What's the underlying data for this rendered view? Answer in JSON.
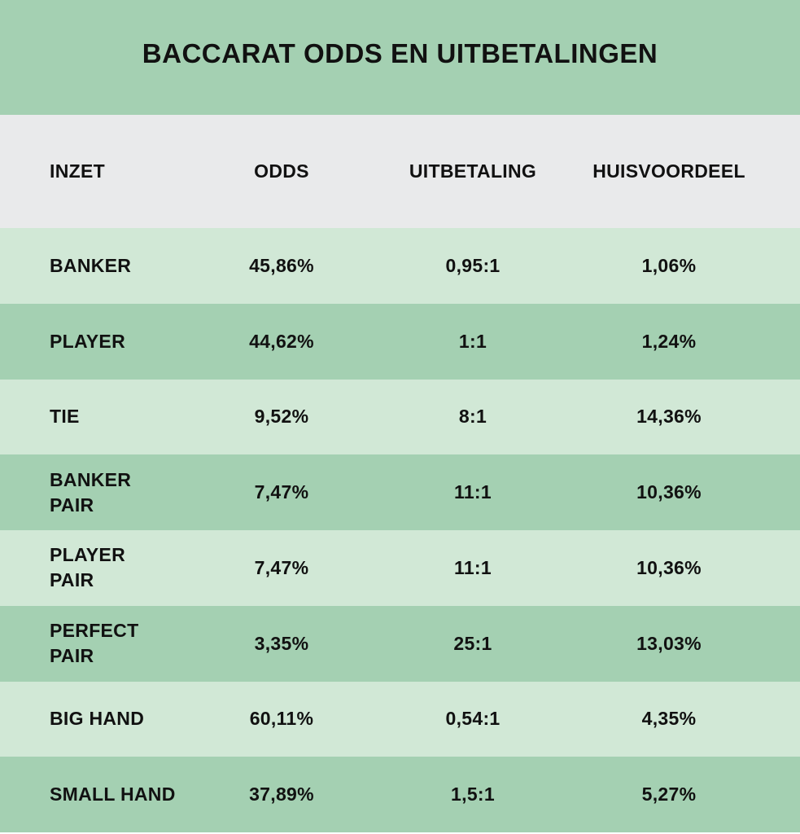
{
  "title": "BACCARAT ODDS EN UITBETALINGEN",
  "colors": {
    "title_band": "#a4d0b2",
    "header_band": "#e9eaeb",
    "row_light": "#d1e8d6",
    "row_dark": "#a4d0b2",
    "text": "#111111"
  },
  "headers": {
    "inzet": "INZET",
    "odds": "ODDS",
    "uitbetaling": "UITBETALING",
    "huisvoordeel": "HUISVOORDEEL"
  },
  "rows": [
    {
      "inzet": "BANKER",
      "odds": "45,86%",
      "uitbetaling": "0,95:1",
      "huisvoordeel": "1,06%"
    },
    {
      "inzet": "PLAYER",
      "odds": "44,62%",
      "uitbetaling": "1:1",
      "huisvoordeel": "1,24%"
    },
    {
      "inzet": "TIE",
      "odds": "9,52%",
      "uitbetaling": "8:1",
      "huisvoordeel": "14,36%"
    },
    {
      "inzet": "BANKER\nPAIR",
      "odds": "7,47%",
      "uitbetaling": "11:1",
      "huisvoordeel": "10,36%"
    },
    {
      "inzet": "PLAYER\nPAIR",
      "odds": "7,47%",
      "uitbetaling": "11:1",
      "huisvoordeel": "10,36%"
    },
    {
      "inzet": "PERFECT\nPAIR",
      "odds": "3,35%",
      "uitbetaling": "25:1",
      "huisvoordeel": "13,03%"
    },
    {
      "inzet": "BIG HAND",
      "odds": "60,11%",
      "uitbetaling": "0,54:1",
      "huisvoordeel": "4,35%"
    },
    {
      "inzet": "SMALL HAND",
      "odds": "37,89%",
      "uitbetaling": "1,5:1",
      "huisvoordeel": "5,27%"
    }
  ]
}
